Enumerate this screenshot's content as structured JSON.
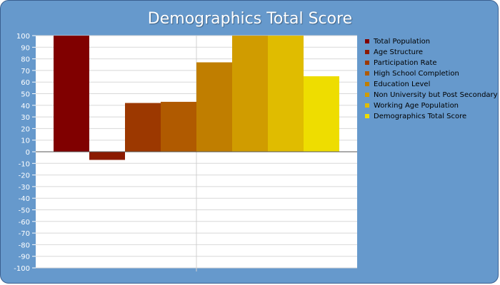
{
  "chart_data": {
    "type": "bar",
    "title": "Demographics Total Score",
    "xlabel": "",
    "ylabel": "",
    "ylim": [
      -100,
      100
    ],
    "ytick_step": 10,
    "grid": true,
    "legend_position": "right",
    "series": [
      {
        "name": "Total Population",
        "value": 100,
        "color": "#800000"
      },
      {
        "name": "Age Structure",
        "value": -7,
        "color": "#8b1a00"
      },
      {
        "name": "Participation Rate",
        "value": 42,
        "color": "#9c3800"
      },
      {
        "name": "High School Completion",
        "value": 43,
        "color": "#b05a00"
      },
      {
        "name": "Education Level",
        "value": 77,
        "color": "#c07e00"
      },
      {
        "name": "Non University but Post Secondary",
        "value": 100,
        "color": "#d09c00"
      },
      {
        "name": "Working Age Population",
        "value": 100,
        "color": "#e0bc00"
      },
      {
        "name": "Demographics Total Score",
        "value": 65,
        "color": "#eedd00"
      }
    ]
  }
}
